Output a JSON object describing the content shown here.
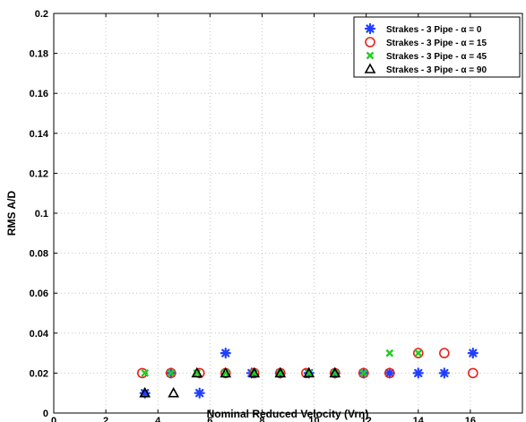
{
  "chart_data": {
    "type": "scatter",
    "title": "",
    "xlabel": "Nominal Reduced Velocity (Vrn)",
    "ylabel": "RMS A/D",
    "xlim": [
      0,
      18
    ],
    "ylim": [
      0,
      0.2
    ],
    "xticks": [
      0,
      2,
      4,
      6,
      8,
      10,
      12,
      14,
      16
    ],
    "yticks": [
      0,
      0.02,
      0.04,
      0.06,
      0.08,
      0.1,
      0.12,
      0.14,
      0.16,
      0.18,
      0.2
    ],
    "xtick_labels": [
      "0",
      "2",
      "4",
      "6",
      "8",
      "10",
      "12",
      "14",
      "16"
    ],
    "ytick_labels": [
      "0",
      "0.02",
      "0.04",
      "0.06",
      "0.08",
      "0.1",
      "0.12",
      "0.14",
      "0.16",
      "0.18",
      "0.2"
    ],
    "grid": true,
    "legend_position": "top-right",
    "series": [
      {
        "name": "Strakes - 3 Pipe - α = 0",
        "marker": "asterisk",
        "color": "#1f3fff",
        "points": [
          [
            3.5,
            0.01
          ],
          [
            4.5,
            0.02
          ],
          [
            5.6,
            0.01
          ],
          [
            6.6,
            0.03
          ],
          [
            7.6,
            0.02
          ],
          [
            8.7,
            0.02
          ],
          [
            9.8,
            0.02
          ],
          [
            10.8,
            0.02
          ],
          [
            11.9,
            0.02
          ],
          [
            12.9,
            0.02
          ],
          [
            14.0,
            0.02
          ],
          [
            15.0,
            0.02
          ],
          [
            16.1,
            0.03
          ]
        ]
      },
      {
        "name": "Strakes - 3 Pipe - α = 15",
        "marker": "circle",
        "color": "#e8211c",
        "points": [
          [
            3.4,
            0.02
          ],
          [
            4.5,
            0.02
          ],
          [
            5.6,
            0.02
          ],
          [
            6.6,
            0.02
          ],
          [
            7.7,
            0.02
          ],
          [
            8.7,
            0.02
          ],
          [
            9.7,
            0.02
          ],
          [
            10.8,
            0.02
          ],
          [
            11.9,
            0.02
          ],
          [
            12.9,
            0.02
          ],
          [
            14.0,
            0.03
          ],
          [
            15.0,
            0.03
          ],
          [
            16.1,
            0.02
          ]
        ]
      },
      {
        "name": "Strakes - 3 Pipe - α = 45",
        "marker": "x",
        "color": "#22cc22",
        "points": [
          [
            3.5,
            0.02
          ],
          [
            4.5,
            0.02
          ],
          [
            5.5,
            0.02
          ],
          [
            6.6,
            0.02
          ],
          [
            7.7,
            0.02
          ],
          [
            8.7,
            0.02
          ],
          [
            9.8,
            0.02
          ],
          [
            10.8,
            0.02
          ],
          [
            11.9,
            0.02
          ],
          [
            12.9,
            0.03
          ],
          [
            14.0,
            0.03
          ]
        ]
      },
      {
        "name": "Strakes - 3 Pipe - α = 90",
        "marker": "triangle",
        "color": "#000000",
        "points": [
          [
            3.5,
            0.01
          ],
          [
            4.6,
            0.01
          ],
          [
            5.5,
            0.02
          ],
          [
            6.6,
            0.02
          ],
          [
            7.7,
            0.02
          ],
          [
            8.7,
            0.02
          ],
          [
            9.8,
            0.02
          ],
          [
            10.8,
            0.02
          ]
        ]
      }
    ]
  }
}
